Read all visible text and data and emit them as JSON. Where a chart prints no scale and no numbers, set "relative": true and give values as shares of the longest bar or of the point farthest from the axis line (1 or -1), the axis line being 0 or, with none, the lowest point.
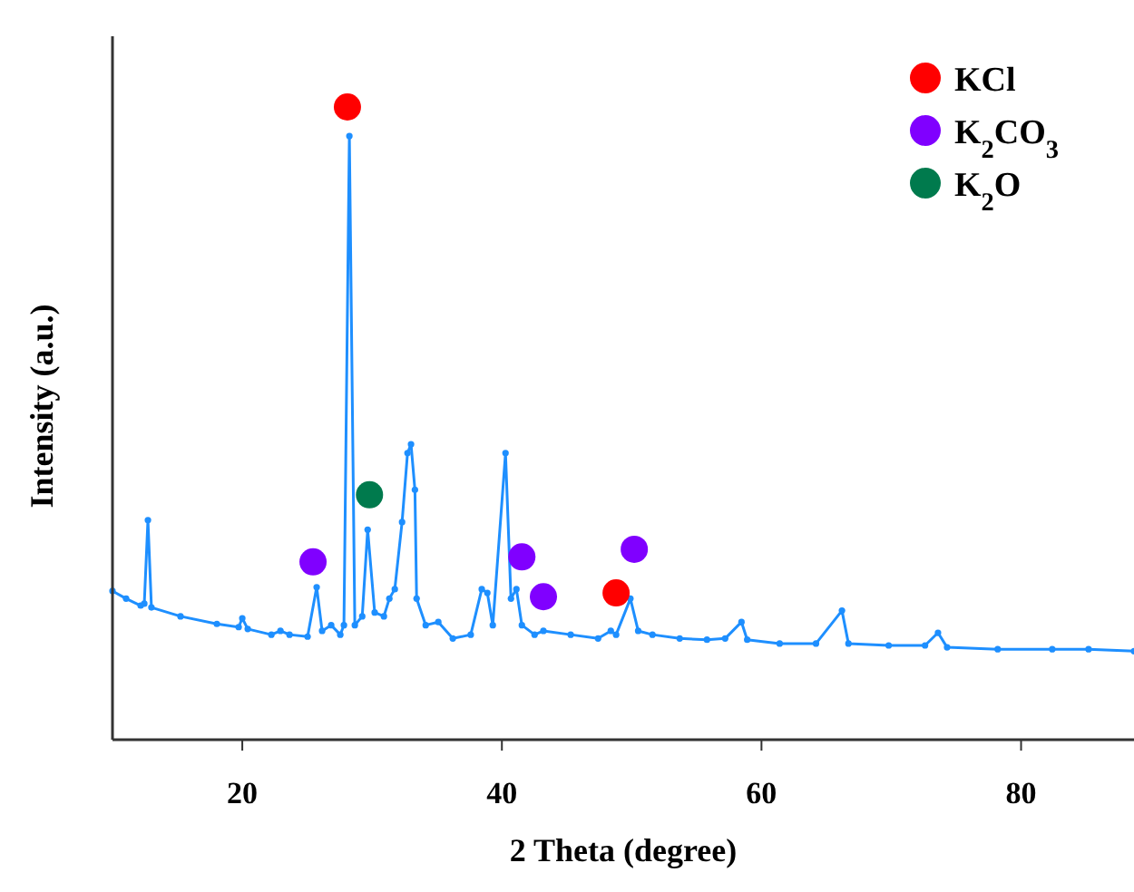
{
  "chart_data": {
    "type": "line",
    "xlabel": "2 Theta (degree)",
    "ylabel": "Intensity (a.u.)",
    "relative": true,
    "xlim": [
      10,
      88.7
    ],
    "xticks": [
      20,
      40,
      60,
      80
    ],
    "tick_labels": "x",
    "grid": false,
    "legend": "top right",
    "marker": "circle",
    "series": [
      {
        "color": "#1e8fff",
        "x": [
          10.0,
          11.05,
          12.17,
          12.45,
          12.73,
          13.0,
          15.24,
          18.04,
          19.72,
          20.0,
          20.42,
          22.24,
          22.94,
          23.64,
          25.03,
          25.73,
          26.15,
          26.85,
          27.55,
          27.83,
          28.25,
          28.67,
          29.24,
          29.66,
          30.2,
          30.91,
          31.33,
          31.75,
          32.31,
          32.73,
          33.0,
          33.3,
          33.43,
          34.13,
          35.1,
          36.22,
          37.6,
          38.45,
          38.88,
          39.3,
          40.28,
          40.7,
          41.12,
          41.54,
          42.52,
          43.2,
          45.3,
          47.41,
          48.39,
          48.8,
          49.9,
          50.5,
          51.6,
          53.7,
          55.8,
          57.2,
          58.46,
          58.9,
          61.4,
          64.2,
          66.2,
          66.7,
          69.8,
          72.6,
          73.6,
          74.3,
          78.2,
          82.4,
          85.2,
          88.7
        ],
        "values": [
          0.235,
          0.223,
          0.212,
          0.215,
          0.347,
          0.209,
          0.195,
          0.183,
          0.178,
          0.192,
          0.175,
          0.166,
          0.172,
          0.166,
          0.163,
          0.241,
          0.172,
          0.181,
          0.166,
          0.181,
          0.954,
          0.181,
          0.195,
          0.332,
          0.201,
          0.195,
          0.223,
          0.238,
          0.344,
          0.453,
          0.467,
          0.395,
          0.223,
          0.181,
          0.186,
          0.16,
          0.166,
          0.238,
          0.232,
          0.181,
          0.453,
          0.223,
          0.238,
          0.181,
          0.166,
          0.172,
          0.166,
          0.16,
          0.172,
          0.166,
          0.223,
          0.172,
          0.166,
          0.16,
          0.158,
          0.16,
          0.186,
          0.158,
          0.152,
          0.152,
          0.204,
          0.152,
          0.149,
          0.149,
          0.169,
          0.146,
          0.143,
          0.143,
          0.143,
          0.14
        ]
      },
      {
        "type": "scatter",
        "name": "KCl",
        "color": "#ff0000",
        "x": [
          28.1,
          48.8
        ],
        "values": [
          1.0,
          0.232
        ]
      },
      {
        "type": "scatter",
        "name": "K$_{2}$CO$_{3}$",
        "color": "#8000ff",
        "x": [
          25.45,
          41.54,
          43.2,
          50.2
        ],
        "values": [
          0.281,
          0.289,
          0.226,
          0.301
        ]
      },
      {
        "type": "scatter",
        "name": "K$_{2}$O",
        "color": "#007a4d",
        "x": [
          29.8
        ],
        "values": [
          0.387
        ]
      }
    ]
  }
}
